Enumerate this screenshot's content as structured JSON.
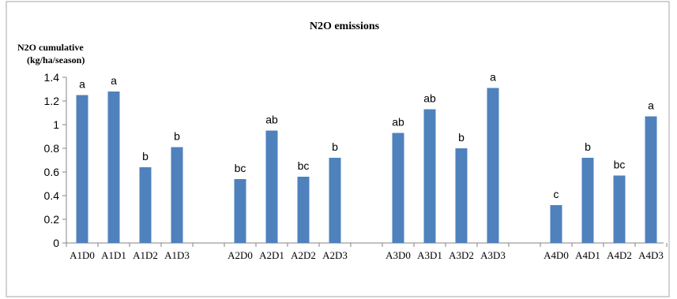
{
  "chart_data": {
    "type": "bar",
    "title": "N2O emissions",
    "ylabel_line1": "N2O cumulative",
    "ylabel_line2": "(kg/ha/season)",
    "xlabel": "",
    "ylim": [
      0,
      1.4
    ],
    "yticks": [
      "0",
      "0.2",
      "0.4",
      "0.6",
      "0.8",
      "1",
      "1.2",
      "1.4"
    ],
    "grid": false,
    "legend": "none",
    "bar_color": "#4F81BD",
    "categories": [
      "A1D0",
      "A1D1",
      "A1D2",
      "A1D3",
      "A2D0",
      "A2D1",
      "A2D2",
      "A2D3",
      "A3D0",
      "A3D1",
      "A3D2",
      "A3D3",
      "A4D0",
      "A4D1",
      "A4D2",
      "A4D3"
    ],
    "values": [
      1.25,
      1.28,
      0.64,
      0.81,
      0.54,
      0.95,
      0.56,
      0.72,
      0.93,
      1.13,
      0.8,
      1.31,
      0.32,
      0.72,
      0.57,
      1.07
    ],
    "letters": [
      "a",
      "a",
      "b",
      "b",
      "bc",
      "ab",
      "bc",
      "b",
      "ab",
      "ab",
      "b",
      "a",
      "c",
      "b",
      "bc",
      "a"
    ]
  }
}
